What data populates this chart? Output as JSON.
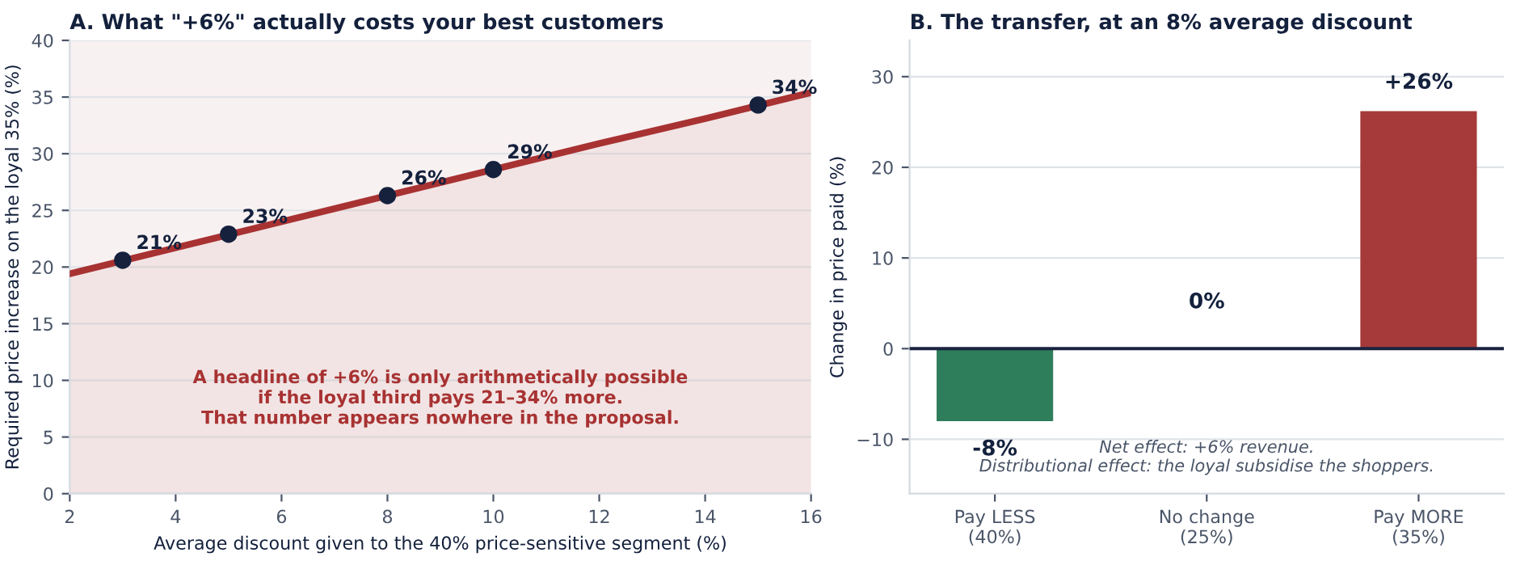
{
  "chart_data": [
    {
      "type": "line",
      "title": "A. What \"+6%\" actually costs your best customers",
      "xlabel": "Average discount given to the 40% price-sensitive segment (%)",
      "ylabel": "Required price increase on the loyal 35% (%)",
      "xlim": [
        2,
        16
      ],
      "ylim": [
        0,
        40
      ],
      "xticks": [
        2,
        4,
        6,
        8,
        10,
        12,
        14,
        16
      ],
      "yticks": [
        0,
        5,
        10,
        15,
        20,
        25,
        30,
        35,
        40
      ],
      "grid": "y",
      "series": [
        {
          "type": "area",
          "color": "#a83232",
          "x": [
            2,
            4,
            6,
            8,
            10,
            12,
            14,
            16
          ],
          "values": [
            19.4,
            21.7,
            24.0,
            26.3,
            28.6,
            30.9,
            33.1,
            35.4
          ],
          "line_style": "solid"
        },
        {
          "type": "scatter",
          "color": "#16213e",
          "marker": "circle",
          "x": [
            3,
            5,
            8,
            10,
            15
          ],
          "values": [
            20.6,
            22.9,
            26.3,
            28.6,
            34.3
          ],
          "value_labels": [
            "21%",
            "23%",
            "26%",
            "29%",
            "34%"
          ]
        }
      ],
      "annotations": [
        "A headline of +6% is only arithmetically possible\nif the loyal third pays 21–34% more.\nThat number appears nowhere in the proposal."
      ]
    },
    {
      "type": "bar",
      "title": "B. The transfer, at an 8% average discount",
      "ylabel": "Change in price paid (%)",
      "categories": [
        "Pay LESS\n(40%)",
        "No change\n(25%)",
        "Pay MORE\n(35%)"
      ],
      "values": [
        -8,
        0,
        26.2
      ],
      "colors": [
        "#2e7d5b",
        "#8a8a8a",
        "#a63a3a"
      ],
      "value_labels": [
        "-8%",
        "0%",
        "+26%"
      ],
      "ylim": [
        -16,
        34
      ],
      "yticks": [
        {
          "value": -10,
          "label": "−10"
        },
        0,
        10,
        20,
        30
      ],
      "grid": "y",
      "ref_lines": [
        {
          "axis": "y",
          "value": 0,
          "color": "#1a2340"
        }
      ],
      "annotations": [
        "Net effect: +6% revenue.\nDistributional effect: the loyal subsidise the shoppers."
      ]
    }
  ]
}
